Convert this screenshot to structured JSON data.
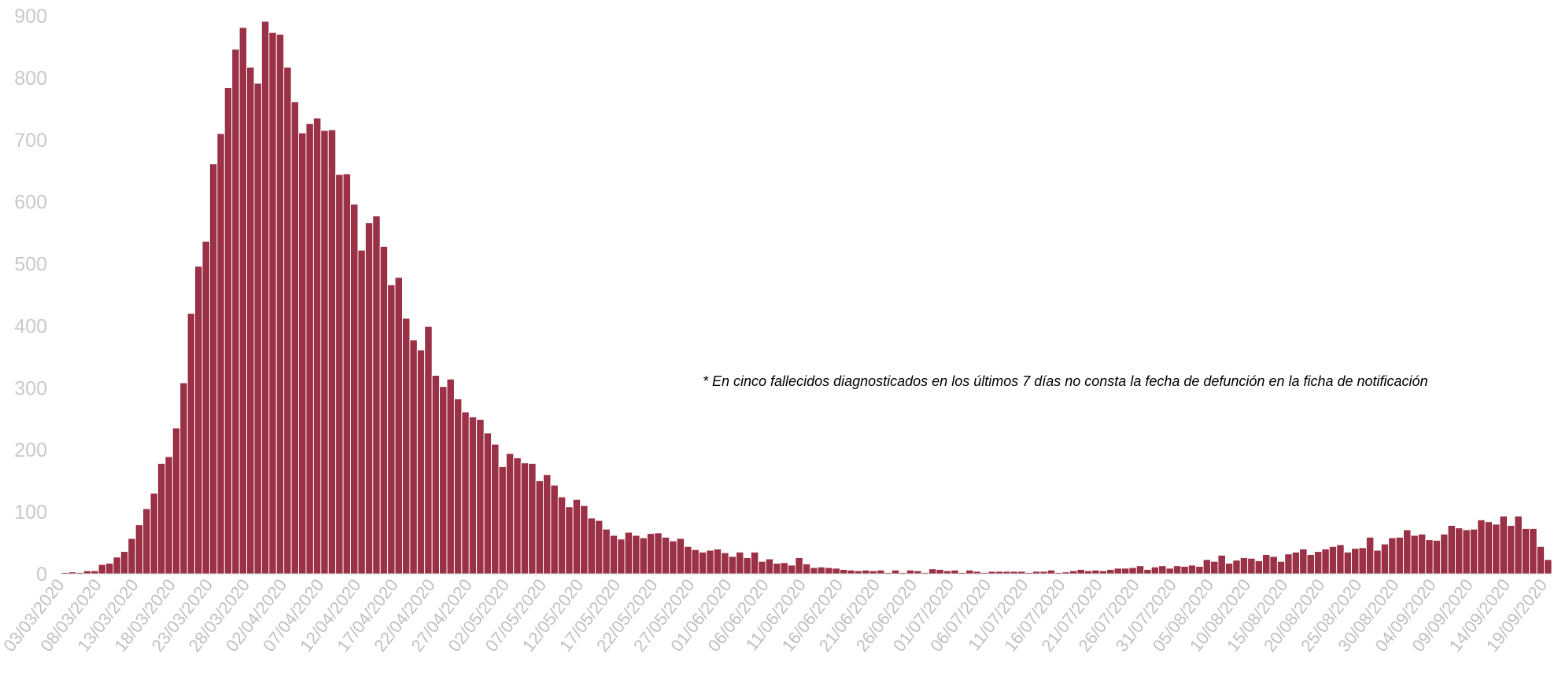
{
  "chart_data": {
    "type": "bar",
    "title": "",
    "xlabel": "",
    "ylabel": "",
    "ylim": [
      0,
      900
    ],
    "yticks": [
      "0",
      "100",
      "200",
      "300",
      "400",
      "500",
      "600",
      "700",
      "800",
      "900"
    ],
    "grid": false,
    "legend": "none",
    "bar_color": "#9b3146",
    "bar_edge_color": "#ffffff",
    "tick_color": "#c0c0c0",
    "start_date": "03/03/2020",
    "tick_every_days": 5,
    "xtick_labels": [
      "03/03/2020",
      "08/03/2020",
      "13/03/2020",
      "18/03/2020",
      "23/03/2020",
      "28/03/2020",
      "02/04/2020",
      "07/04/2020",
      "12/04/2020",
      "17/04/2020",
      "22/04/2020",
      "27/04/2020",
      "02/05/2020",
      "07/05/2020",
      "12/05/2020",
      "17/05/2020",
      "22/05/2020",
      "27/05/2020",
      "01/06/2020",
      "06/06/2020",
      "11/06/2020",
      "16/06/2020",
      "21/06/2020",
      "26/06/2020",
      "01/07/2020",
      "06/07/2020",
      "11/07/2020",
      "16/07/2020",
      "21/07/2020",
      "26/07/2020",
      "31/07/2020",
      "05/08/2020",
      "10/08/2020",
      "15/08/2020",
      "20/08/2020",
      "25/08/2020",
      "30/08/2020",
      "04/09/2020",
      "09/09/2020",
      "14/09/2020",
      "19/09/2020"
    ],
    "values": [
      2,
      3,
      2,
      5,
      5,
      15,
      17,
      27,
      36,
      57,
      79,
      105,
      130,
      178,
      189,
      235,
      308,
      420,
      496,
      536,
      661,
      710,
      784,
      846,
      881,
      817,
      791,
      891,
      873,
      870,
      817,
      761,
      711,
      726,
      735,
      715,
      716,
      644,
      645,
      596,
      522,
      566,
      577,
      528,
      466,
      478,
      412,
      377,
      361,
      399,
      320,
      302,
      314,
      282,
      261,
      253,
      249,
      227,
      209,
      173,
      194,
      187,
      179,
      178,
      150,
      160,
      143,
      124,
      108,
      120,
      110,
      90,
      86,
      72,
      62,
      56,
      67,
      62,
      58,
      65,
      66,
      59,
      53,
      57,
      44,
      39,
      35,
      38,
      40,
      34,
      28,
      35,
      26,
      35,
      20,
      24,
      17,
      18,
      14,
      26,
      16,
      10,
      11,
      10,
      9,
      7,
      6,
      5,
      6,
      5,
      6,
      2,
      6,
      2,
      6,
      5,
      2,
      8,
      7,
      5,
      6,
      2,
      6,
      4,
      2,
      4,
      4,
      4,
      4,
      4,
      2,
      4,
      4,
      6,
      2,
      3,
      5,
      7,
      5,
      6,
      5,
      7,
      9,
      9,
      10,
      13,
      7,
      11,
      13,
      9,
      13,
      12,
      14,
      12,
      23,
      20,
      30,
      17,
      22,
      26,
      25,
      21,
      31,
      28,
      20,
      32,
      35,
      40,
      31,
      36,
      40,
      44,
      47,
      35,
      41,
      42,
      59,
      38,
      48,
      58,
      59,
      71,
      62,
      64,
      55,
      54,
      64,
      78,
      74,
      71,
      72,
      87,
      84,
      80,
      93,
      78,
      93,
      73,
      73,
      44,
      23
    ],
    "annotation": "* En cinco fallecidos diagnosticados en los últimos 7 días no consta la fecha de defunción en la ficha de notificación"
  }
}
